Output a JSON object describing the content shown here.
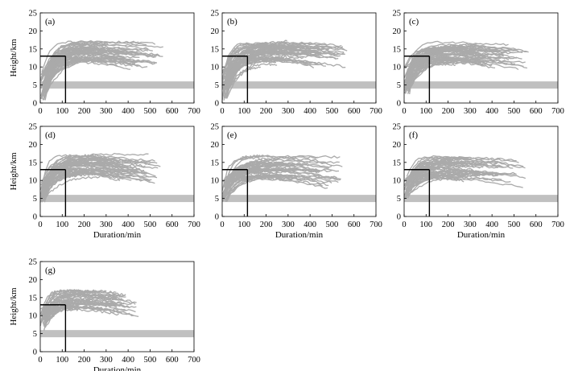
{
  "chart_data": {
    "type": "line",
    "layout": "7 small-multiple panels in a 3-column grid",
    "xlabel": "Duration/min",
    "ylabel": "Height/km",
    "xlim": [
      0,
      700
    ],
    "ylim": [
      0,
      25
    ],
    "xticks": [
      0,
      100,
      200,
      300,
      400,
      500,
      600,
      700
    ],
    "yticks": [
      0,
      5,
      10,
      15,
      20,
      25
    ],
    "grid": false,
    "trajectory_color": "#aaaaaa",
    "band_color": "#c0c0c0",
    "guide_color": "#000000",
    "shaded_band_km": [
      4,
      6
    ],
    "guide_lines": {
      "x_min": 115,
      "y_km": 13
    },
    "panels": [
      {
        "label": "(a)",
        "trajectories": 60,
        "duration_range_min": [
          150,
          560
        ],
        "start_height_range_km": [
          0.5,
          9
        ],
        "plateau_range_km": [
          12,
          17.5
        ]
      },
      {
        "label": "(b)",
        "trajectories": 60,
        "duration_range_min": [
          150,
          570
        ],
        "start_height_range_km": [
          0.5,
          9
        ],
        "plateau_range_km": [
          12,
          17.5
        ]
      },
      {
        "label": "(c)",
        "trajectories": 55,
        "duration_range_min": [
          150,
          570
        ],
        "start_height_range_km": [
          2,
          10
        ],
        "plateau_range_km": [
          12,
          17
        ]
      },
      {
        "label": "(d)",
        "trajectories": 55,
        "duration_range_min": [
          140,
          550
        ],
        "start_height_range_km": [
          3.5,
          10
        ],
        "plateau_range_km": [
          12,
          17.5
        ]
      },
      {
        "label": "(e)",
        "trajectories": 50,
        "duration_range_min": [
          130,
          550
        ],
        "start_height_range_km": [
          4,
          10
        ],
        "plateau_range_km": [
          11,
          17
        ]
      },
      {
        "label": "(f)",
        "trajectories": 50,
        "duration_range_min": [
          130,
          560
        ],
        "start_height_range_km": [
          5,
          11
        ],
        "plateau_range_km": [
          11,
          17
        ]
      },
      {
        "label": "(g)",
        "trajectories": 45,
        "duration_range_min": [
          110,
          450
        ],
        "start_height_range_km": [
          6,
          12
        ],
        "plateau_range_km": [
          12,
          17.5
        ]
      }
    ]
  }
}
